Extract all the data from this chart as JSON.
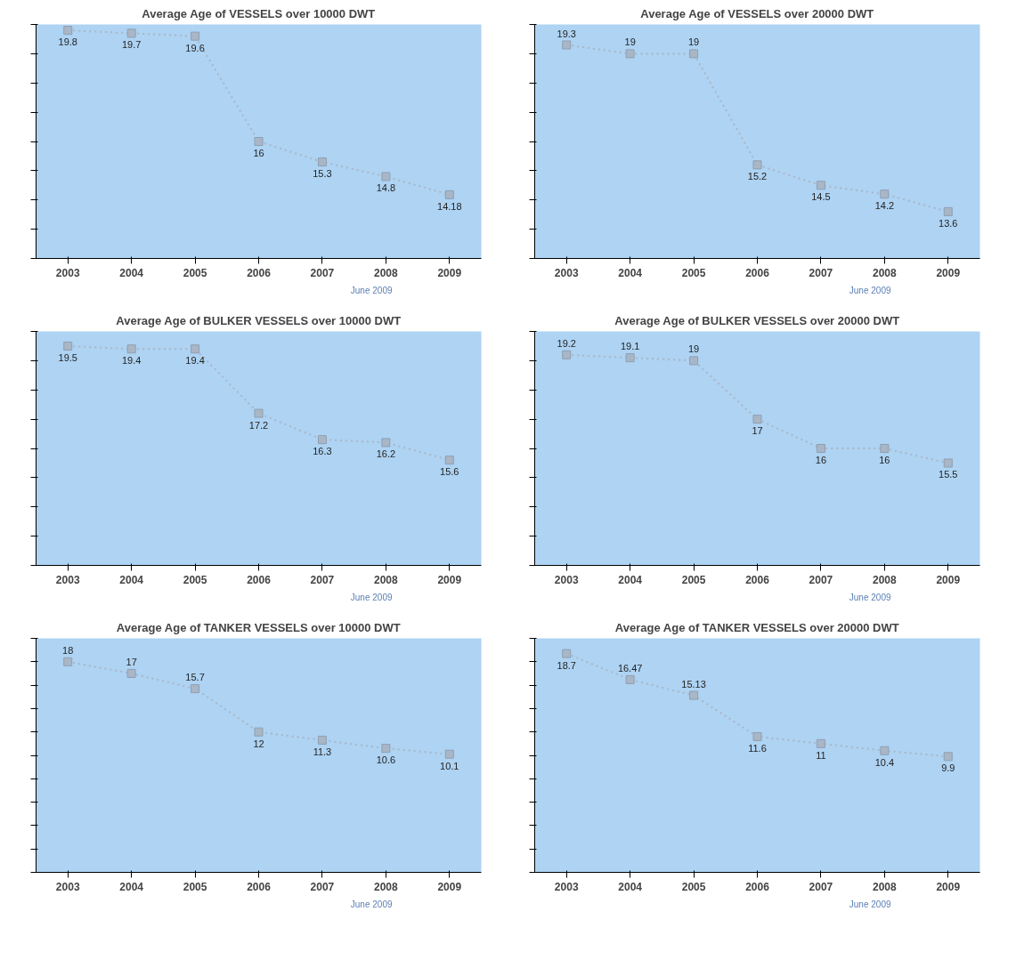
{
  "chart_data": [
    {
      "type": "line",
      "title": "Average Age of VESSELS over 10000 DWT",
      "categories": [
        "2003",
        "2004",
        "2005",
        "2006",
        "2007",
        "2008",
        "2009"
      ],
      "series": [
        {
          "color": "#a9b6c6",
          "values": [
            19.8,
            19.7,
            19.6,
            16,
            15.3,
            14.8,
            14.18
          ]
        }
      ],
      "ylim": [
        12,
        20
      ],
      "yticks": [
        {
          "value": 12,
          "label": null
        },
        {
          "value": 13,
          "label": null
        },
        {
          "value": 14,
          "label": null
        },
        {
          "value": 15,
          "label": null
        },
        {
          "value": 16,
          "label": null
        },
        {
          "value": 17,
          "label": null
        },
        {
          "value": 18,
          "label": null
        },
        {
          "value": 19,
          "label": null
        },
        {
          "value": 20,
          "label": null
        }
      ],
      "tick_labels": "x",
      "data_labels": true,
      "marker": "square",
      "line_style": "dotted",
      "grid": false,
      "annotations": [
        "June 2009"
      ]
    },
    {
      "type": "line",
      "title": "Average Age of VESSELS over 20000 DWT",
      "categories": [
        "2003",
        "2004",
        "2005",
        "2006",
        "2007",
        "2008",
        "2009"
      ],
      "series": [
        {
          "color": "#a9b6c6",
          "values": [
            19.3,
            19,
            19,
            15.2,
            14.5,
            14.2,
            13.6
          ]
        }
      ],
      "ylim": [
        12,
        20
      ],
      "yticks": [
        {
          "value": 12,
          "label": null
        },
        {
          "value": 13,
          "label": null
        },
        {
          "value": 14,
          "label": null
        },
        {
          "value": 15,
          "label": null
        },
        {
          "value": 16,
          "label": null
        },
        {
          "value": 17,
          "label": null
        },
        {
          "value": 18,
          "label": null
        },
        {
          "value": 19,
          "label": null
        },
        {
          "value": 20,
          "label": null
        }
      ],
      "tick_labels": "x",
      "data_labels": true,
      "marker": "square",
      "line_style": "dotted",
      "grid": false,
      "annotations": [
        "June 2009"
      ]
    },
    {
      "type": "line",
      "title": "Average Age of BULKER VESSELS over 10000 DWT",
      "categories": [
        "2003",
        "2004",
        "2005",
        "2006",
        "2007",
        "2008",
        "2009"
      ],
      "series": [
        {
          "color": "#a9b6c6",
          "values": [
            19.5,
            19.4,
            19.4,
            17.2,
            16.3,
            16.2,
            15.6
          ]
        }
      ],
      "ylim": [
        12,
        20
      ],
      "yticks": [
        {
          "value": 12,
          "label": null
        },
        {
          "value": 13,
          "label": null
        },
        {
          "value": 14,
          "label": null
        },
        {
          "value": 15,
          "label": null
        },
        {
          "value": 16,
          "label": null
        },
        {
          "value": 17,
          "label": null
        },
        {
          "value": 18,
          "label": null
        },
        {
          "value": 19,
          "label": null
        },
        {
          "value": 20,
          "label": null
        }
      ],
      "tick_labels": "x",
      "data_labels": true,
      "marker": "square",
      "line_style": "dotted",
      "grid": false,
      "annotations": [
        "June 2009"
      ]
    },
    {
      "type": "line",
      "title": "Average Age of BULKER VESSELS over 20000 DWT",
      "categories": [
        "2003",
        "2004",
        "2005",
        "2006",
        "2007",
        "2008",
        "2009"
      ],
      "series": [
        {
          "color": "#a9b6c6",
          "values": [
            19.2,
            19.1,
            19,
            17,
            16,
            16,
            15.5
          ]
        }
      ],
      "ylim": [
        12,
        20
      ],
      "yticks": [
        {
          "value": 12,
          "label": null
        },
        {
          "value": 13,
          "label": null
        },
        {
          "value": 14,
          "label": null
        },
        {
          "value": 15,
          "label": null
        },
        {
          "value": 16,
          "label": null
        },
        {
          "value": 17,
          "label": null
        },
        {
          "value": 18,
          "label": null
        },
        {
          "value": 19,
          "label": null
        },
        {
          "value": 20,
          "label": null
        }
      ],
      "tick_labels": "x",
      "data_labels": true,
      "marker": "square",
      "line_style": "dotted",
      "grid": false,
      "annotations": [
        "June 2009"
      ]
    },
    {
      "type": "line",
      "title": "Average Age of TANKER VESSELS over 10000 DWT",
      "categories": [
        "2003",
        "2004",
        "2005",
        "2006",
        "2007",
        "2008",
        "2009"
      ],
      "series": [
        {
          "color": "#a9b6c6",
          "values": [
            18,
            17,
            15.7,
            12,
            11.3,
            10.6,
            10.1
          ]
        }
      ],
      "ylim": [
        0,
        20
      ],
      "yticks": [
        {
          "value": 0,
          "label": null
        },
        {
          "value": 2,
          "label": null
        },
        {
          "value": 4,
          "label": null
        },
        {
          "value": 6,
          "label": null
        },
        {
          "value": 8,
          "label": null
        },
        {
          "value": 10,
          "label": null
        },
        {
          "value": 12,
          "label": null
        },
        {
          "value": 14,
          "label": null
        },
        {
          "value": 16,
          "label": null
        },
        {
          "value": 18,
          "label": null
        },
        {
          "value": 20,
          "label": null
        }
      ],
      "tick_labels": "x",
      "data_labels": true,
      "marker": "square",
      "line_style": "dotted",
      "grid": false,
      "annotations": [
        "June 2009"
      ]
    },
    {
      "type": "line",
      "title": "Average Age of TANKER VESSELS over 20000 DWT",
      "categories": [
        "2003",
        "2004",
        "2005",
        "2006",
        "2007",
        "2008",
        "2009"
      ],
      "series": [
        {
          "color": "#a9b6c6",
          "values": [
            18.7,
            16.47,
            15.13,
            11.6,
            11,
            10.4,
            9.9
          ]
        }
      ],
      "ylim": [
        0,
        20
      ],
      "yticks": [
        {
          "value": 0,
          "label": null
        },
        {
          "value": 2,
          "label": null
        },
        {
          "value": 4,
          "label": null
        },
        {
          "value": 6,
          "label": null
        },
        {
          "value": 8,
          "label": null
        },
        {
          "value": 10,
          "label": null
        },
        {
          "value": 12,
          "label": null
        },
        {
          "value": 14,
          "label": null
        },
        {
          "value": 16,
          "label": null
        },
        {
          "value": 18,
          "label": null
        },
        {
          "value": 20,
          "label": null
        }
      ],
      "tick_labels": "x",
      "data_labels": true,
      "marker": "square",
      "line_style": "dotted",
      "grid": false,
      "annotations": [
        "June 2009"
      ]
    }
  ]
}
